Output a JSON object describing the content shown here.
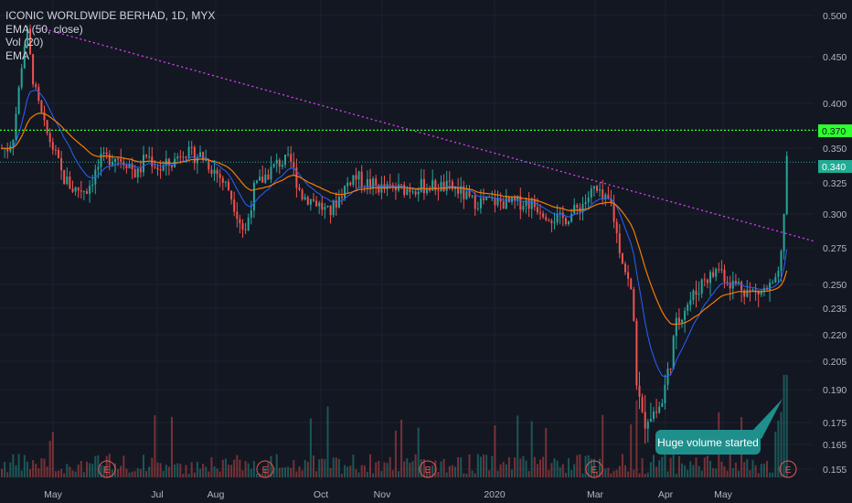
{
  "legend": {
    "title": "ICONIC WORLDWIDE BERHAD, 1D, MYX",
    "ema_label": "EMA (50, close)",
    "vol_label": "Vol (20)",
    "ema2_label": "EMA"
  },
  "annotation": {
    "text": "Huge volume started"
  },
  "earnings_marker": "E",
  "colors": {
    "background": "#131722",
    "up": "#26a69a",
    "down": "#ef5350",
    "ema50": "#f57c00",
    "ema20": "#2962ff",
    "trendline": "#e040fb",
    "resistance": "#2eff2e",
    "last_price": "#22ab94"
  },
  "chart_data": {
    "type": "candlestick",
    "title": "ICONIC WORLDWIDE BERHAD, 1D, MYX",
    "y_ticks": [
      0.155,
      0.165,
      0.175,
      0.19,
      0.205,
      0.22,
      0.235,
      0.25,
      0.275,
      0.3,
      0.325,
      0.35,
      0.4,
      0.45,
      0.5
    ],
    "x_ticks": [
      "May",
      "Jul",
      "Aug",
      "Oct",
      "Nov",
      "2020",
      "Mar",
      "Apr",
      "May"
    ],
    "price_labels": {
      "resistance": "0.370",
      "last": "0.340"
    },
    "resistance_level": 0.37,
    "current_price": 0.34,
    "trendline": {
      "from": [
        "Apr",
        0.485
      ],
      "to": [
        "Jun",
        0.28
      ]
    },
    "close_profile": [
      [
        0,
        0.35
      ],
      [
        8,
        0.35
      ],
      [
        14,
        0.36
      ],
      [
        20,
        0.41
      ],
      [
        26,
        0.46
      ],
      [
        30,
        0.48
      ],
      [
        35,
        0.43
      ],
      [
        42,
        0.4
      ],
      [
        50,
        0.37
      ],
      [
        58,
        0.35
      ],
      [
        68,
        0.33
      ],
      [
        80,
        0.32
      ],
      [
        95,
        0.32
      ],
      [
        110,
        0.34
      ],
      [
        125,
        0.345
      ],
      [
        140,
        0.34
      ],
      [
        150,
        0.33
      ],
      [
        160,
        0.345
      ],
      [
        175,
        0.335
      ],
      [
        190,
        0.34
      ],
      [
        200,
        0.35
      ],
      [
        208,
        0.345
      ],
      [
        220,
        0.345
      ],
      [
        240,
        0.33
      ],
      [
        250,
        0.32
      ],
      [
        260,
        0.3
      ],
      [
        268,
        0.285
      ],
      [
        278,
        0.32
      ],
      [
        290,
        0.33
      ],
      [
        305,
        0.34
      ],
      [
        318,
        0.34
      ],
      [
        330,
        0.315
      ],
      [
        345,
        0.31
      ],
      [
        360,
        0.3
      ],
      [
        372,
        0.315
      ],
      [
        385,
        0.33
      ],
      [
        400,
        0.325
      ],
      [
        420,
        0.32
      ],
      [
        440,
        0.32
      ],
      [
        460,
        0.322
      ],
      [
        480,
        0.322
      ],
      [
        500,
        0.32
      ],
      [
        515,
        0.31
      ],
      [
        530,
        0.31
      ],
      [
        545,
        0.31
      ],
      [
        560,
        0.308
      ],
      [
        575,
        0.31
      ],
      [
        590,
        0.305
      ],
      [
        600,
        0.3
      ],
      [
        612,
        0.295
      ],
      [
        625,
        0.3
      ],
      [
        640,
        0.31
      ],
      [
        650,
        0.32
      ],
      [
        660,
        0.31
      ],
      [
        668,
        0.31
      ],
      [
        676,
        0.28
      ],
      [
        684,
        0.26
      ],
      [
        692,
        0.24
      ],
      [
        697,
        0.19
      ],
      [
        703,
        0.175
      ],
      [
        710,
        0.18
      ],
      [
        718,
        0.18
      ],
      [
        725,
        0.185
      ],
      [
        733,
        0.205
      ],
      [
        740,
        0.225
      ],
      [
        747,
        0.235
      ],
      [
        755,
        0.24
      ],
      [
        762,
        0.245
      ],
      [
        770,
        0.255
      ],
      [
        778,
        0.255
      ],
      [
        786,
        0.262
      ],
      [
        794,
        0.255
      ],
      [
        802,
        0.25
      ],
      [
        810,
        0.25
      ],
      [
        820,
        0.245
      ],
      [
        830,
        0.245
      ],
      [
        840,
        0.247
      ],
      [
        850,
        0.25
      ],
      [
        856,
        0.275
      ],
      [
        860,
        0.34
      ]
    ],
    "volume_spike": {
      "date": "May",
      "note": "Huge volume started"
    }
  }
}
